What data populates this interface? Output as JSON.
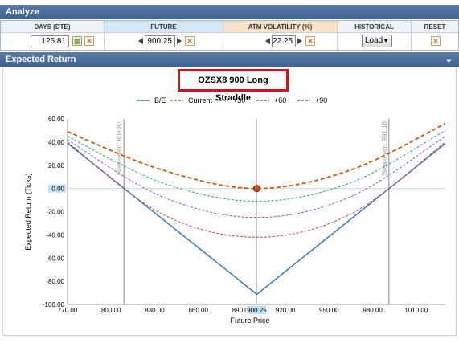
{
  "analyze_bar": {
    "title": "Analyze"
  },
  "controls": {
    "dte": {
      "header": "DAYS (DTE)",
      "value": "126.81"
    },
    "future": {
      "header": "FUTURE",
      "value": "900.25"
    },
    "volatility": {
      "header": "ATM VOLATILITY (%)",
      "value": "22.25"
    },
    "historical": {
      "header": "HISTORICAL",
      "button": "Load"
    },
    "reset": {
      "header": "RESET"
    }
  },
  "section_bar": {
    "title": "Expected Return",
    "chevron": "chevron-down-icon"
  },
  "colors": {
    "be": "#3a7ebd",
    "current": "#cc5a10",
    "plus30": "#2aa37a",
    "plus60": "#9a4fc4",
    "plus90": "#d0483e"
  },
  "chart_data": {
    "type": "line",
    "title": "OZSX8 900 Long Straddle",
    "xlabel": "Future Price",
    "ylabel": "Expected Return (Ticks)",
    "xlim": [
      770,
      1030
    ],
    "ylim": [
      -100,
      60
    ],
    "x_ticks": [
      "770.00",
      "800.00",
      "830.00",
      "860.00",
      "890.00",
      "920.00",
      "950.00",
      "980.00",
      "1010.00"
    ],
    "y_ticks": [
      "60.00",
      "40.00",
      "20.00",
      "0.00",
      "-20.00",
      "-40.00",
      "-60.00",
      "-80.00",
      "-100.00"
    ],
    "x_tick_values": [
      770,
      800,
      830,
      860,
      890,
      920,
      950,
      980,
      1010
    ],
    "y_tick_values": [
      60,
      40,
      20,
      0,
      -20,
      -40,
      -60,
      -80,
      -100
    ],
    "current_x_label": "900.25",
    "current_y_label": "0.00",
    "current_x": 900.25,
    "current_y": 0,
    "breakevens": [
      {
        "x": 808.82,
        "label": "Breakeven: 808.82"
      },
      {
        "x": 991.18,
        "label": "Breakeven: 991.18"
      }
    ],
    "legend_position": "top",
    "series": [
      {
        "name": "B/E",
        "style": "solid",
        "x": [
          770,
          900.25,
          1030
        ],
        "y": [
          39,
          -91.25,
          38.75
        ]
      },
      {
        "name": "Current",
        "style": "dashed",
        "x": [
          770,
          835,
          900.25,
          965,
          1030
        ],
        "y": [
          49,
          16,
          0,
          16,
          56
        ]
      },
      {
        "name": "+30",
        "style": "dashed",
        "x": [
          770,
          835,
          900.25,
          965,
          1030
        ],
        "y": [
          45,
          5,
          -11,
          5,
          50
        ]
      },
      {
        "name": "+60",
        "style": "dashed",
        "x": [
          770,
          835,
          900.25,
          965,
          1030
        ],
        "y": [
          42,
          -7,
          -25,
          -7,
          45
        ]
      },
      {
        "name": "+90",
        "style": "dashed",
        "x": [
          770,
          835,
          900.25,
          965,
          1030
        ],
        "y": [
          40,
          -22,
          -42,
          -22,
          40
        ]
      }
    ]
  }
}
